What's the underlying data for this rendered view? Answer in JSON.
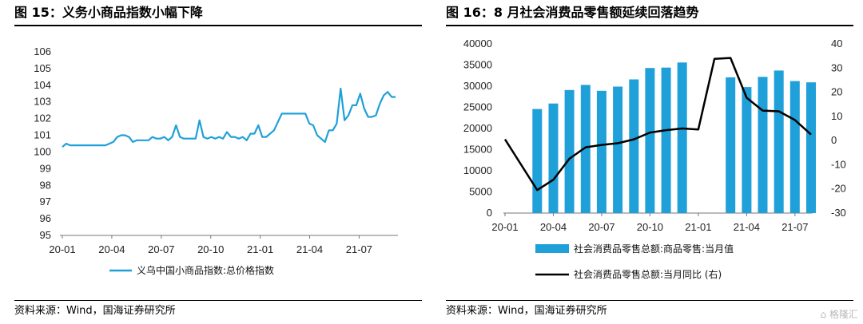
{
  "left": {
    "title": "图 15：义务小商品指数小幅下降",
    "source": "资料来源：Wind，国海证券研究所",
    "chart_data": {
      "type": "line",
      "x_ticks": [
        "20-01",
        "20-04",
        "20-07",
        "20-10",
        "21-01",
        "21-04",
        "21-07"
      ],
      "y_ticks": [
        "95",
        "96",
        "97",
        "98",
        "99",
        "100",
        "101",
        "102",
        "103",
        "104",
        "105",
        "106"
      ],
      "ylim": [
        95,
        106
      ],
      "series": [
        {
          "name": "义乌中国小商品指数:总价格指数",
          "color": "#1fa0d8",
          "weekly_start": "2020-01",
          "values": [
            100.3,
            100.5,
            100.4,
            100.4,
            100.4,
            100.4,
            100.4,
            100.4,
            100.4,
            100.4,
            100.4,
            100.4,
            100.5,
            100.6,
            100.9,
            101.0,
            101.0,
            100.9,
            100.6,
            100.7,
            100.7,
            100.7,
            100.7,
            100.9,
            100.8,
            100.8,
            100.9,
            100.7,
            100.9,
            101.6,
            100.9,
            100.8,
            100.8,
            100.8,
            100.8,
            101.9,
            100.9,
            100.8,
            100.9,
            100.8,
            100.9,
            100.8,
            101.2,
            100.9,
            100.9,
            100.8,
            100.9,
            100.7,
            101.1,
            101.1,
            101.6,
            100.9,
            100.9,
            101.1,
            101.3,
            101.8,
            102.3,
            102.3,
            102.3,
            102.3,
            102.3,
            102.3,
            102.3,
            101.7,
            101.6,
            101.0,
            100.8,
            100.6,
            101.3,
            101.3,
            101.7,
            103.8,
            101.9,
            102.2,
            102.8,
            102.8,
            103.5,
            102.6,
            102.1,
            102.1,
            102.2,
            102.9,
            103.4,
            103.6,
            103.3,
            103.3
          ]
        }
      ],
      "legend": [
        {
          "label": "义乌中国小商品指数:总价格指数",
          "color": "#1fa0d8"
        }
      ],
      "legend_position": "bottom",
      "grid": false
    }
  },
  "right": {
    "title": "图 16：8 月社会消费品零售额延续回落趋势",
    "source": "资料来源：Wind，国海证券研究所",
    "chart_data": {
      "type": "bar+line",
      "x_ticks": [
        "20-01",
        "20-04",
        "20-07",
        "20-10",
        "21-01",
        "21-04",
        "21-07"
      ],
      "y_left_ticks": [
        "0",
        "5000",
        "10000",
        "15000",
        "20000",
        "25000",
        "30000",
        "35000",
        "40000"
      ],
      "y_right_ticks": [
        "-30",
        "-20",
        "-10",
        "0",
        "10",
        "20",
        "30",
        "40"
      ],
      "ylim_left": [
        0,
        40000
      ],
      "ylim_right": [
        -30,
        40
      ],
      "categories": [
        "20-01",
        "20-02",
        "20-03",
        "20-04",
        "20-05",
        "20-06",
        "20-07",
        "20-08",
        "20-09",
        "20-10",
        "20-11",
        "20-12",
        "21-01",
        "21-02",
        "21-03",
        "21-04",
        "21-05",
        "21-06",
        "21-07",
        "21-08"
      ],
      "bars": {
        "name": "社会消费品零售总额:商品零售:当月值",
        "color": "#1fa0d8",
        "values": [
          null,
          null,
          24600,
          25900,
          29100,
          30300,
          28900,
          29900,
          31600,
          34300,
          34400,
          35600,
          null,
          null,
          32100,
          29800,
          32200,
          33700,
          31200,
          30900
        ]
      },
      "line": {
        "name": "社会消费品零售总额:当月同比 (右)",
        "color": "#000000",
        "values": [
          0.5,
          null,
          -20.5,
          -16.2,
          -7.5,
          -2.8,
          -1.8,
          -1.1,
          0.5,
          3.3,
          4.3,
          5.0,
          4.6,
          33.8,
          34.2,
          17.7,
          12.4,
          12.1,
          8.5,
          2.5
        ]
      },
      "legend": [
        {
          "label": "社会消费品零售总额:商品零售:当月值",
          "color": "#1fa0d8",
          "kind": "bar"
        },
        {
          "label": "社会消费品零售总额:当月同比 (右)",
          "color": "#000000",
          "kind": "line"
        }
      ],
      "legend_position": "bottom",
      "grid": false
    }
  },
  "watermark": "格隆汇"
}
